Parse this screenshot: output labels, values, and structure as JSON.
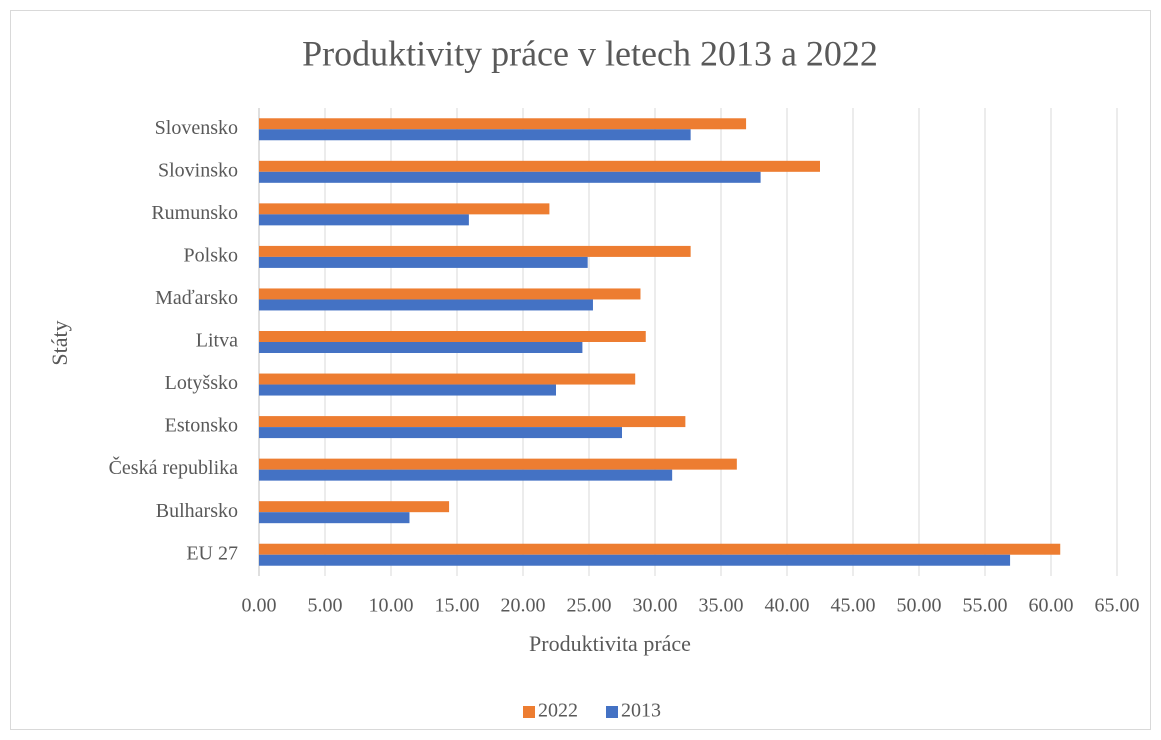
{
  "chart_data": {
    "type": "hbar",
    "title": "Produktivity práce v letech 2013 a 2022",
    "x_label": "Produktivita práce",
    "y_label": "Státy",
    "categories": [
      "EU 27",
      "Bulharsko",
      "Česká republika",
      "Estonsko",
      "Lotyšsko",
      "Litva",
      "Maďarsko",
      "Polsko",
      "Rumunsko",
      "Slovinsko",
      "Slovensko"
    ],
    "series": [
      {
        "name": "2022",
        "color": "#ed7d31",
        "values": [
          60.7,
          14.4,
          36.2,
          32.3,
          28.5,
          29.3,
          28.9,
          32.7,
          22.0,
          42.5,
          36.9
        ]
      },
      {
        "name": "2013",
        "color": "#4472c4",
        "values": [
          56.9,
          11.4,
          31.3,
          27.5,
          22.5,
          24.5,
          25.3,
          24.9,
          15.9,
          38.0,
          32.7
        ]
      }
    ],
    "xlim": [
      0,
      65
    ],
    "xticks": [
      {
        "value": 0,
        "label": "0.00"
      },
      {
        "value": 5,
        "label": "5.00"
      },
      {
        "value": 10,
        "label": "10.00"
      },
      {
        "value": 15,
        "label": "15.00"
      },
      {
        "value": 20,
        "label": "20.00"
      },
      {
        "value": 25,
        "label": "25.00"
      },
      {
        "value": 30,
        "label": "30.00"
      },
      {
        "value": 35,
        "label": "35.00"
      },
      {
        "value": 40,
        "label": "40.00"
      },
      {
        "value": 45,
        "label": "45.00"
      },
      {
        "value": 50,
        "label": "50.00"
      },
      {
        "value": 55,
        "label": "55.00"
      },
      {
        "value": 60,
        "label": "60.00"
      },
      {
        "value": 65,
        "label": "65.00"
      }
    ],
    "grid": true,
    "legend": "bottom"
  }
}
